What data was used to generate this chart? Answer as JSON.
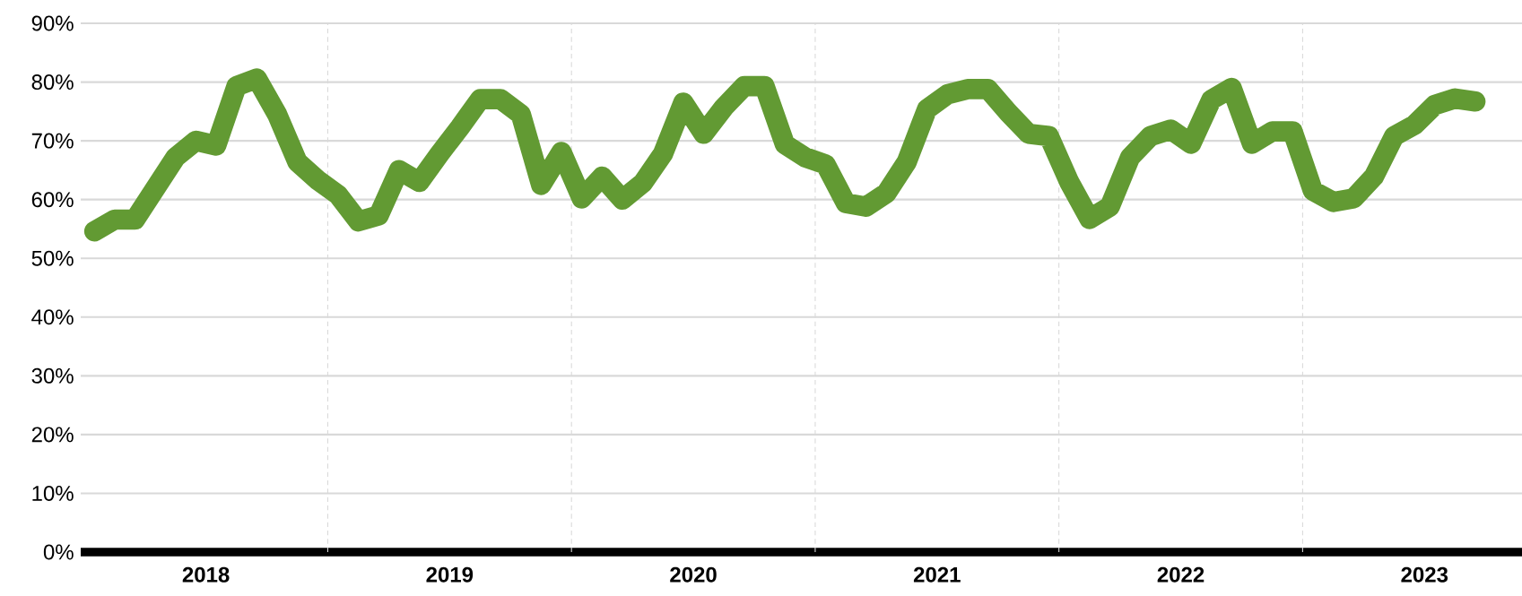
{
  "chart_data": {
    "type": "line",
    "x": [
      "2018-01",
      "2018-02",
      "2018-03",
      "2018-04",
      "2018-05",
      "2018-06",
      "2018-07",
      "2018-08",
      "2018-09",
      "2018-10",
      "2018-11",
      "2018-12",
      "2019-01",
      "2019-02",
      "2019-03",
      "2019-04",
      "2019-05",
      "2019-06",
      "2019-07",
      "2019-08",
      "2019-09",
      "2019-10",
      "2019-11",
      "2019-12",
      "2020-01",
      "2020-02",
      "2020-03",
      "2020-04",
      "2020-05",
      "2020-06",
      "2020-07",
      "2020-08",
      "2020-09",
      "2020-10",
      "2020-11",
      "2020-12",
      "2021-01",
      "2021-02",
      "2021-03",
      "2021-04",
      "2021-05",
      "2021-06",
      "2021-07",
      "2021-08",
      "2021-09",
      "2021-10",
      "2021-11",
      "2021-12",
      "2022-01",
      "2022-02",
      "2022-03",
      "2022-04",
      "2022-05",
      "2022-06",
      "2022-07",
      "2022-08",
      "2022-09",
      "2022-10",
      "2022-11",
      "2022-12",
      "2023-01",
      "2023-02",
      "2023-03",
      "2023-04",
      "2023-05",
      "2023-06",
      "2023-07",
      "2023-08",
      "2023-09"
    ],
    "series": [
      {
        "color": "#629a33",
        "values": [
          54.6,
          56.6,
          56.6,
          61.9,
          67.2,
          70.0,
          69.2,
          79.3,
          80.6,
          74.5,
          66.4,
          63.3,
          60.8,
          56.3,
          57.3,
          65.0,
          63.0,
          67.8,
          72.3,
          77.1,
          77.1,
          74.5,
          62.5,
          68.1,
          60.2,
          63.9,
          60.0,
          62.8,
          67.8,
          76.5,
          71.2,
          75.7,
          79.3,
          79.3,
          69.4,
          67.2,
          66.0,
          59.4,
          58.8,
          61.1,
          66.4,
          75.4,
          77.9,
          78.8,
          78.8,
          74.8,
          71.2,
          70.8,
          63.0,
          56.7,
          58.8,
          67.2,
          70.8,
          71.9,
          69.5,
          77.0,
          79.0,
          69.5,
          71.6,
          71.6,
          61.5,
          59.6,
          60.2,
          63.9,
          70.8,
          72.7,
          76.1,
          77.2,
          76.7
        ]
      }
    ],
    "xlim": [
      "2017-12-11",
      "2023-11-10"
    ],
    "xticks": [
      {
        "value": "2018-06-16",
        "label": "2018"
      },
      {
        "value": "2019-06-16",
        "label": "2019"
      },
      {
        "value": "2020-06-16",
        "label": "2020"
      },
      {
        "value": "2021-06-16",
        "label": "2021"
      },
      {
        "value": "2022-06-16",
        "label": "2022"
      },
      {
        "value": "2023-06-16",
        "label": "2023"
      }
    ],
    "ylim": [
      0,
      90
    ],
    "yticks": [
      {
        "value": 0,
        "label": "0%"
      },
      {
        "value": 10,
        "label": "10%"
      },
      {
        "value": 20,
        "label": "20%"
      },
      {
        "value": 30,
        "label": "30%"
      },
      {
        "value": 40,
        "label": "40%"
      },
      {
        "value": 50,
        "label": "50%"
      },
      {
        "value": 60,
        "label": "60%"
      },
      {
        "value": 70,
        "label": "70%"
      },
      {
        "value": 80,
        "label": "80%"
      },
      {
        "value": 90,
        "label": "90%"
      }
    ],
    "grid": "y",
    "ref_lines": [
      {
        "axis": "x",
        "value": "2018-12-16",
        "line_style": "dashed",
        "color": "#d9d9d9"
      },
      {
        "axis": "x",
        "value": "2019-12-16",
        "line_style": "dashed",
        "color": "#d9d9d9"
      },
      {
        "axis": "x",
        "value": "2020-12-16",
        "line_style": "dashed",
        "color": "#d9d9d9"
      },
      {
        "axis": "x",
        "value": "2021-12-16",
        "line_style": "dashed",
        "color": "#d9d9d9"
      },
      {
        "axis": "x",
        "value": "2022-12-16",
        "line_style": "dashed",
        "color": "#d9d9d9"
      }
    ]
  }
}
